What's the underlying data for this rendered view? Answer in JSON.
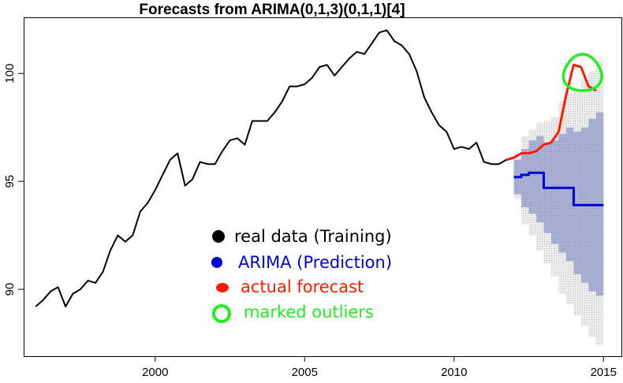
{
  "chart_data": {
    "type": "line",
    "title": "Forecasts from ARIMA(0,1,3)(0,1,1)[4]",
    "xlabel": "",
    "ylabel": "",
    "xlim": [
      1995.6,
      2015.6
    ],
    "ylim": [
      86.9,
      102.6
    ],
    "xticks": [
      2000,
      2005,
      2010,
      2015
    ],
    "yticks": [
      90,
      95,
      100
    ],
    "grid": false,
    "legend_position": "center-left",
    "colors": {
      "training": "#000000",
      "prediction": "#0000dd",
      "actual": "#ff1a00",
      "outlier": "#22ee22",
      "band80": "#a9aed0",
      "band95": "#d9d9dc"
    },
    "series": [
      {
        "name": "real data (Training)",
        "x": [
          1996.0,
          1996.25,
          1996.5,
          1996.75,
          1997.0,
          1997.25,
          1997.5,
          1997.75,
          1998.0,
          1998.25,
          1998.5,
          1998.75,
          1999.0,
          1999.25,
          1999.5,
          1999.75,
          2000.0,
          2000.25,
          2000.5,
          2000.75,
          2001.0,
          2001.25,
          2001.5,
          2001.75,
          2002.0,
          2002.25,
          2002.5,
          2002.75,
          2003.0,
          2003.25,
          2003.5,
          2003.75,
          2004.0,
          2004.25,
          2004.5,
          2004.75,
          2005.0,
          2005.25,
          2005.5,
          2005.75,
          2006.0,
          2006.25,
          2006.5,
          2006.75,
          2007.0,
          2007.25,
          2007.5,
          2007.75,
          2008.0,
          2008.25,
          2008.5,
          2008.75,
          2009.0,
          2009.25,
          2009.5,
          2009.75,
          2010.0,
          2010.25,
          2010.5,
          2010.75,
          2011.0,
          2011.25,
          2011.5,
          2011.75
        ],
        "values": [
          89.2,
          89.5,
          89.9,
          90.1,
          89.2,
          89.8,
          90.0,
          90.4,
          90.3,
          90.8,
          91.8,
          92.5,
          92.2,
          92.5,
          93.6,
          94.0,
          94.6,
          95.3,
          96.0,
          96.3,
          94.8,
          95.1,
          95.9,
          95.8,
          95.8,
          96.4,
          96.9,
          97.0,
          96.7,
          97.8,
          97.8,
          97.8,
          98.2,
          98.7,
          99.4,
          99.4,
          99.5,
          99.8,
          100.3,
          100.4,
          99.9,
          100.3,
          100.7,
          101.0,
          100.9,
          101.4,
          101.9,
          102.0,
          101.5,
          101.3,
          100.9,
          100.1,
          98.9,
          98.2,
          97.6,
          97.3,
          96.5,
          96.6,
          96.5,
          96.8,
          95.9,
          95.8,
          95.8,
          96.0
        ]
      },
      {
        "name": "ARIMA (Prediction)",
        "x": [
          2012.0,
          2012.25,
          2012.5,
          2012.75,
          2013.0,
          2013.25,
          2013.5,
          2013.75,
          2014.0,
          2014.25,
          2014.5,
          2014.75
        ],
        "values": [
          95.2,
          95.3,
          95.4,
          95.4,
          94.7,
          94.7,
          94.7,
          94.7,
          93.9,
          93.9,
          93.9,
          93.9
        ]
      },
      {
        "name": "actual forecast",
        "x": [
          2011.75,
          2012.0,
          2012.25,
          2012.5,
          2012.75,
          2013.0,
          2013.25,
          2013.5,
          2013.75,
          2014.0,
          2014.25,
          2014.5,
          2014.75
        ],
        "values": [
          96.0,
          96.1,
          96.3,
          96.3,
          96.4,
          96.7,
          96.8,
          97.3,
          99.0,
          100.4,
          100.3,
          99.4,
          99.2
        ]
      }
    ],
    "bands": {
      "x": [
        2012.0,
        2012.25,
        2012.5,
        2012.75,
        2013.0,
        2013.25,
        2013.5,
        2013.75,
        2014.0,
        2014.25,
        2014.5,
        2014.75
      ],
      "lo80": [
        94.4,
        93.8,
        93.5,
        93.1,
        92.6,
        92.1,
        91.7,
        91.3,
        90.7,
        90.3,
        89.9,
        89.7
      ],
      "hi80": [
        96.0,
        96.5,
        96.9,
        97.1,
        96.8,
        96.9,
        97.2,
        97.5,
        97.3,
        97.5,
        97.9,
        98.2
      ],
      "lo95": [
        94.2,
        93.0,
        92.5,
        91.8,
        91.2,
        90.6,
        89.8,
        89.3,
        88.8,
        88.3,
        87.8,
        87.4
      ],
      "hi95": [
        96.3,
        97.1,
        97.4,
        97.7,
        97.8,
        98.0,
        98.7,
        99.1,
        99.3,
        99.7,
        100.1,
        100.6
      ]
    },
    "annotations": [
      {
        "label": "marked outliers",
        "x": 2014.3,
        "y": 100.0
      }
    ]
  }
}
